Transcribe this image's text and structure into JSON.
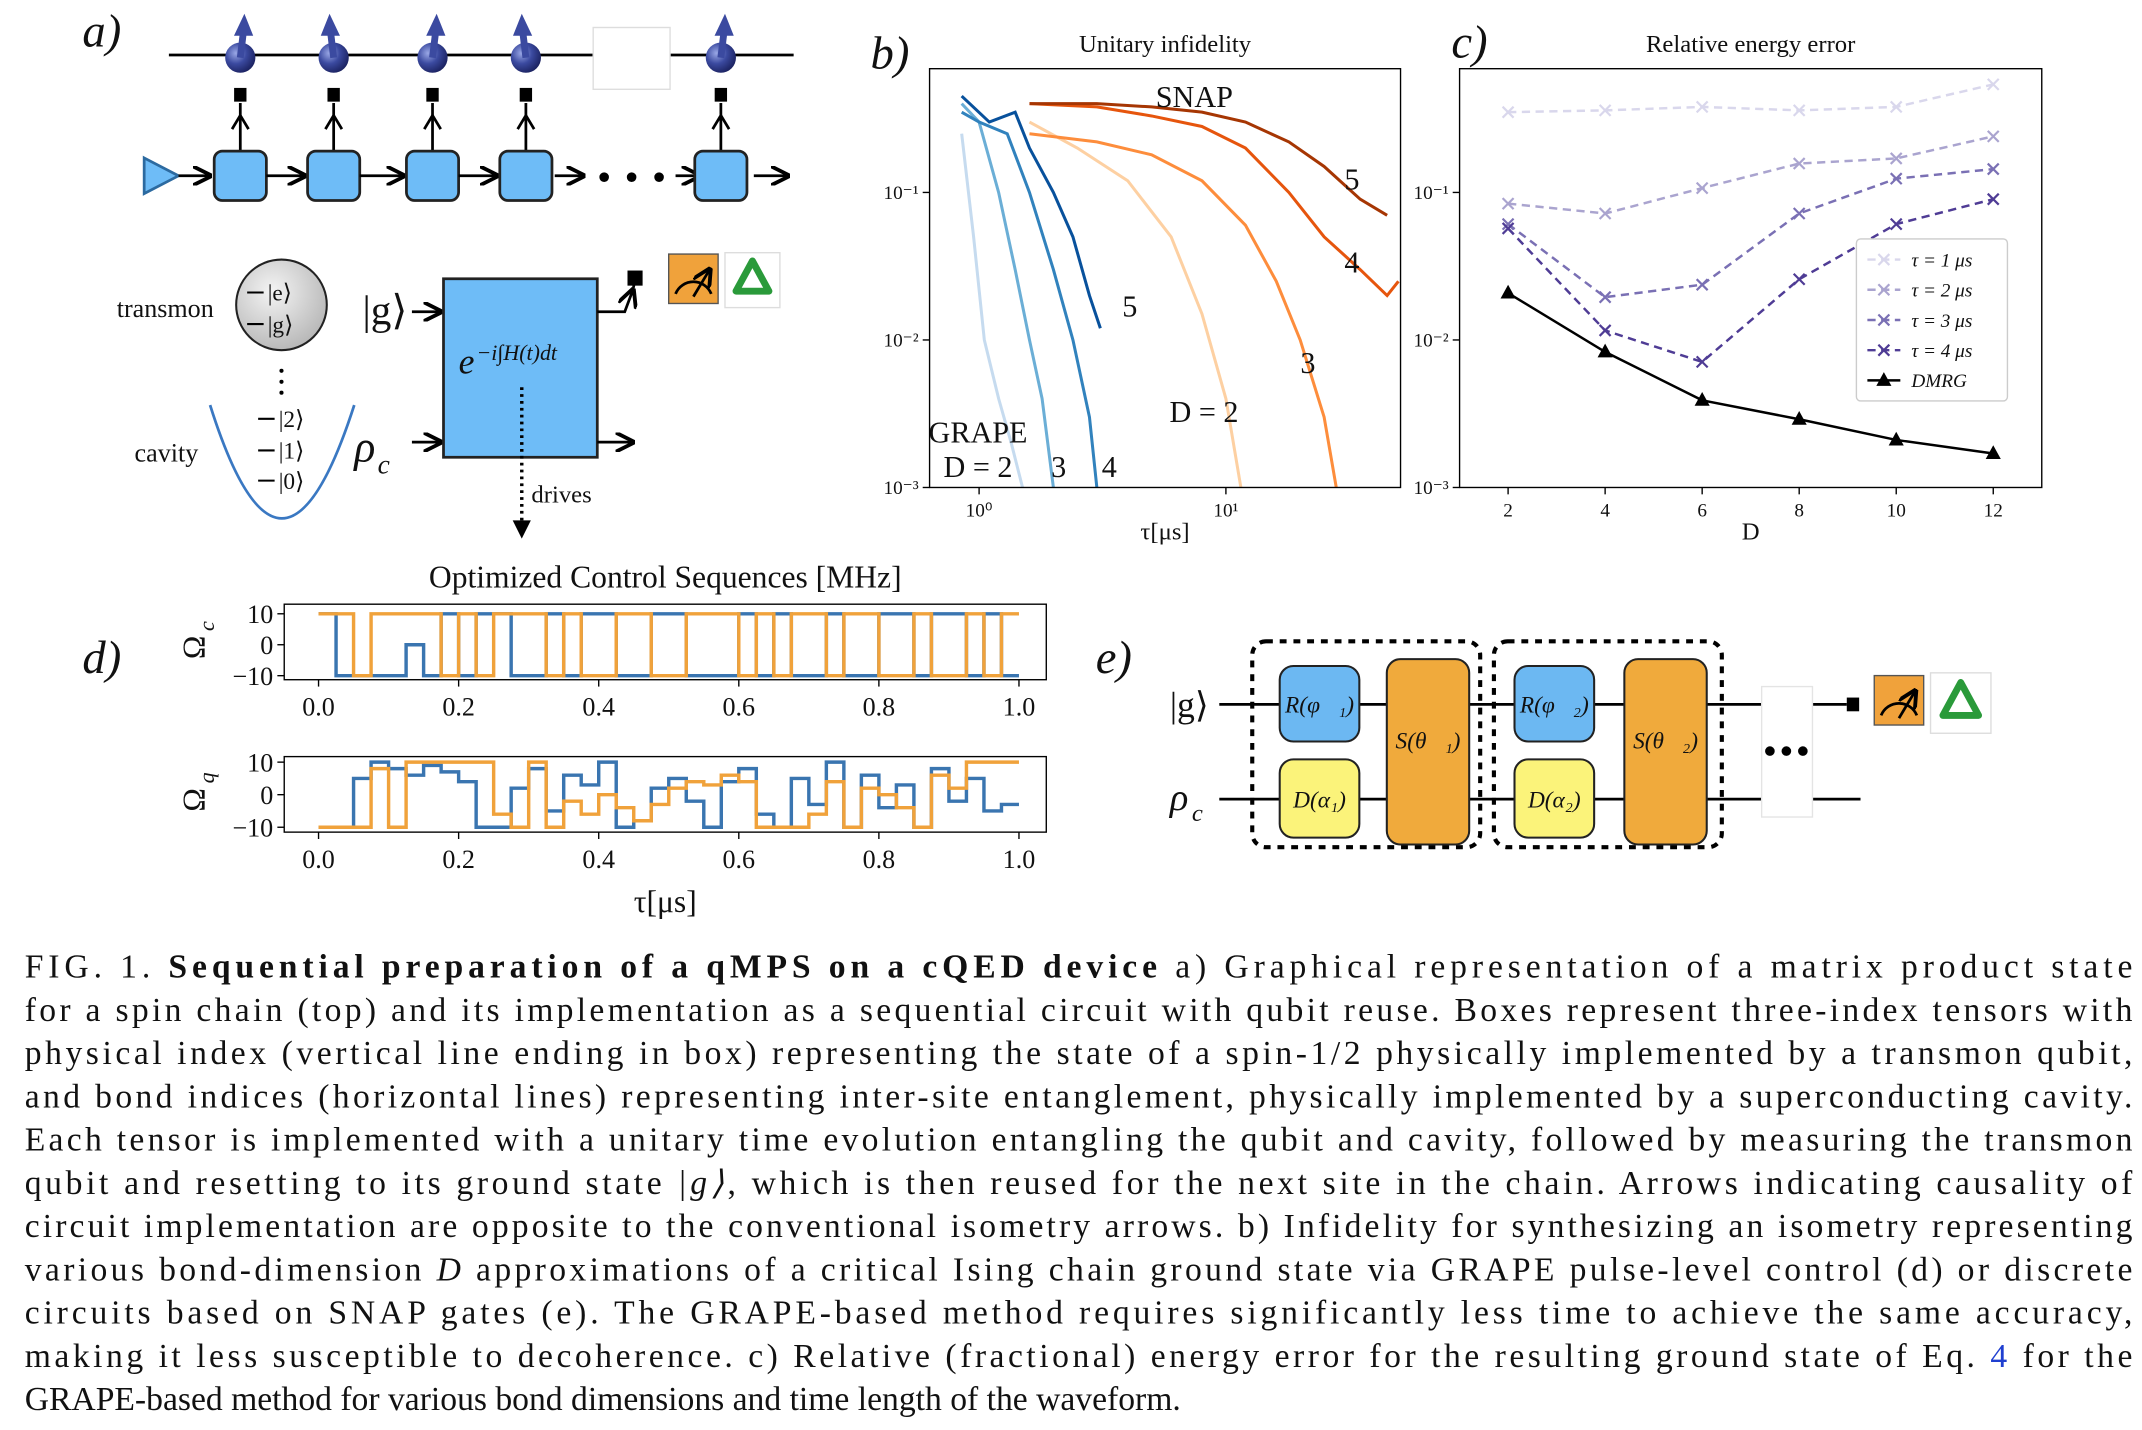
{
  "panel_labels": [
    "a)",
    "b)",
    "c)",
    "d)",
    "e)"
  ],
  "diagram_a": {
    "transmon": "transmon",
    "cavity": "cavity",
    "level_e": "|e⟩",
    "level_g": "|g⟩",
    "levels": [
      "|2⟩",
      "|1⟩",
      "|0⟩"
    ],
    "input_qubit": "|g⟩",
    "rho": "ρ",
    "rho_sub": "c",
    "unitary": "e",
    "unitary_exp": "−i∫H(t)dt",
    "drives": "drives"
  },
  "diagram_e": {
    "input_qubit": "|g⟩",
    "rho": "ρ",
    "rho_sub": "c",
    "gates": [
      "R(φ⃗₁)",
      "D(α₁)",
      "S(θ⃗₁)",
      "R(φ⃗₂)",
      "D(α₂)",
      "S(θ⃗₂)"
    ]
  },
  "chart_data": [
    {
      "type": "line",
      "title": "Unitary infidelity",
      "xlabel": "τ[μs]",
      "xscale": "log",
      "yscale": "log",
      "xlim": [
        0.63,
        51
      ],
      "ylim": [
        0.001,
        0.69
      ],
      "xticks": [
        {
          "value": 1,
          "label": "10⁰"
        },
        {
          "value": 10,
          "label": "10¹"
        }
      ],
      "yticks": [
        {
          "value": 0.001,
          "label": "10⁻³"
        },
        {
          "value": 0.01,
          "label": "10⁻²"
        },
        {
          "value": 0.1,
          "label": "10⁻¹"
        }
      ],
      "series": [
        {
          "color": "#c6dbef",
          "x": [
            0.85,
            0.95,
            1.05,
            1.2,
            1.35,
            1.5
          ],
          "values": [
            0.25,
            0.05,
            0.01,
            0.004,
            0.002,
            0.001
          ]
        },
        {
          "color": "#6baed6",
          "x": [
            0.85,
            1.0,
            1.2,
            1.4,
            1.6,
            1.8,
            2.0
          ],
          "values": [
            0.4,
            0.3,
            0.1,
            0.03,
            0.01,
            0.004,
            0.001
          ]
        },
        {
          "color": "#3182bd",
          "x": [
            0.85,
            1.0,
            1.3,
            1.6,
            2.0,
            2.4,
            2.8,
            3.0
          ],
          "values": [
            0.35,
            0.3,
            0.25,
            0.1,
            0.03,
            0.01,
            0.003,
            0.001
          ]
        },
        {
          "color": "#08519c",
          "x": [
            0.85,
            1.1,
            1.4,
            1.6,
            2.0,
            2.4,
            2.8,
            3.1
          ],
          "values": [
            0.45,
            0.3,
            0.35,
            0.2,
            0.1,
            0.05,
            0.02,
            0.012
          ]
        },
        {
          "color": "#fdd0a2",
          "x": [
            1.6,
            2.5,
            4,
            6,
            8,
            10,
            11.5
          ],
          "values": [
            0.3,
            0.2,
            0.12,
            0.05,
            0.015,
            0.004,
            0.001
          ]
        },
        {
          "color": "#fd8d3c",
          "x": [
            1.6,
            3,
            5,
            8,
            12,
            16,
            20,
            25,
            28
          ],
          "values": [
            0.25,
            0.22,
            0.18,
            0.12,
            0.06,
            0.025,
            0.01,
            0.003,
            0.001
          ]
        },
        {
          "color": "#e6550d",
          "x": [
            1.6,
            3,
            5,
            8,
            12,
            18,
            25,
            35,
            45,
            50
          ],
          "values": [
            0.4,
            0.38,
            0.33,
            0.28,
            0.2,
            0.1,
            0.05,
            0.03,
            0.02,
            0.025
          ]
        },
        {
          "color": "#a63603",
          "x": [
            1.6,
            3,
            5,
            8,
            12,
            18,
            25,
            35,
            45
          ],
          "values": [
            0.4,
            0.4,
            0.38,
            0.35,
            0.3,
            0.22,
            0.15,
            0.09,
            0.07
          ]
        }
      ],
      "annotations": [
        {
          "text": "SNAP",
          "x": 7.45,
          "y": 0.45,
          "color": "#b5332a"
        },
        {
          "text": "5",
          "x": 32.4,
          "y": 0.124,
          "color": "#b5332a"
        },
        {
          "text": "4",
          "x": 32.4,
          "y": 0.034,
          "color": "#b5332a"
        },
        {
          "text": "3",
          "x": 21.5,
          "y": 0.0071,
          "color": "#b5332a"
        },
        {
          "text": "D = 2",
          "x": 8.15,
          "y": 0.0033,
          "color": "#b5332a"
        },
        {
          "text": "5",
          "x": 4.08,
          "y": 0.0171,
          "color": "#2f6fb0"
        },
        {
          "text": "GRAPE",
          "x": 0.99,
          "y": 0.0024,
          "color": "#2f6fb0"
        },
        {
          "text": "D = 2",
          "x": 0.99,
          "y": 0.0014,
          "color": "#2f6fb0"
        },
        {
          "text": "3",
          "x": 2.1,
          "y": 0.0014,
          "color": "#2f6fb0"
        },
        {
          "text": "4",
          "x": 3.37,
          "y": 0.0014,
          "color": "#2f6fb0"
        }
      ]
    },
    {
      "type": "line",
      "title": "Relative energy error",
      "xlabel": "D",
      "yscale": "log",
      "xlim": [
        1,
        13
      ],
      "ylim": [
        0.001,
        0.69
      ],
      "xticks": [
        2,
        4,
        6,
        8,
        10,
        12
      ],
      "yticks": [
        {
          "value": 0.001,
          "label": "10⁻³"
        },
        {
          "value": 0.01,
          "label": "10⁻²"
        },
        {
          "value": 0.1,
          "label": "10⁻¹"
        }
      ],
      "legend": "center right",
      "x": [
        2,
        4,
        6,
        8,
        10,
        12
      ],
      "series": [
        {
          "name": "τ = 1 μs",
          "color": "#d9d7ec",
          "linestyle": "dashed",
          "marker": "x",
          "values": [
            0.35,
            0.36,
            0.38,
            0.36,
            0.38,
            0.54
          ]
        },
        {
          "name": "τ = 2 μs",
          "color": "#aaa4cf",
          "linestyle": "dashed",
          "marker": "x",
          "values": [
            0.084,
            0.072,
            0.107,
            0.157,
            0.17,
            0.24
          ]
        },
        {
          "name": "τ = 3 μs",
          "color": "#7a70b4",
          "linestyle": "dashed",
          "marker": "x",
          "values": [
            0.061,
            0.0195,
            0.0237,
            0.072,
            0.124,
            0.144
          ]
        },
        {
          "name": "τ = 4 μs",
          "color": "#4f3c95",
          "linestyle": "dashed",
          "marker": "x",
          "values": [
            0.057,
            0.0116,
            0.0071,
            0.0258,
            0.061,
            0.09
          ]
        },
        {
          "name": "DMRG",
          "color": "#000000",
          "linestyle": "solid",
          "marker": "^",
          "values": [
            0.0208,
            0.0083,
            0.0039,
            0.0029,
            0.0021,
            0.0017
          ]
        }
      ]
    },
    {
      "type": "step",
      "title": "Optimized Control Sequences [MHz]",
      "ylabel": "Ω",
      "ylabel_sub": "c",
      "xlim": [
        -0.049,
        1.039
      ],
      "ylim": [
        -11.3,
        13.1
      ],
      "xticks": [
        {
          "value": 0,
          "label": "0.0"
        },
        0.2,
        0.4,
        0.6,
        0.8,
        {
          "value": 1,
          "label": "1.0"
        }
      ],
      "yticks": [
        {
          "value": -10,
          "label": "−10"
        },
        0,
        10
      ],
      "x": [
        0,
        0.025,
        0.05,
        0.075,
        0.1,
        0.125,
        0.15,
        0.175,
        0.2,
        0.225,
        0.25,
        0.275,
        0.3,
        0.325,
        0.35,
        0.375,
        0.4,
        0.425,
        0.45,
        0.475,
        0.5,
        0.525,
        0.55,
        0.575,
        0.6,
        0.625,
        0.65,
        0.675,
        0.7,
        0.725,
        0.75,
        0.775,
        0.8,
        0.825,
        0.85,
        0.875,
        0.9,
        0.925,
        0.95,
        0.975
      ],
      "series": [
        {
          "color": "#3a75b0",
          "values": [
            10,
            -10,
            -10,
            -10,
            -10,
            0,
            -10,
            10,
            -10,
            10,
            10,
            -10,
            -10,
            10,
            -10,
            10,
            10,
            -10,
            -10,
            10,
            10,
            -10,
            -10,
            -10,
            10,
            -10,
            10,
            -10,
            -10,
            10,
            -10,
            -10,
            10,
            10,
            -10,
            10,
            10,
            -10,
            10,
            -10
          ]
        },
        {
          "color": "#f0a23b",
          "values": [
            10,
            10,
            -10,
            10,
            10,
            10,
            10,
            -10,
            10,
            -10,
            10,
            10,
            10,
            -10,
            10,
            -10,
            -10,
            10,
            10,
            -10,
            -10,
            10,
            10,
            10,
            -10,
            10,
            -10,
            10,
            10,
            -10,
            10,
            10,
            -10,
            -10,
            10,
            -10,
            -10,
            10,
            -10,
            10
          ]
        }
      ]
    },
    {
      "type": "step",
      "xlabel": "τ[μs]",
      "ylabel": "Ω",
      "ylabel_sub": "q",
      "xlim": [
        -0.049,
        1.039
      ],
      "ylim": [
        -11.5,
        11.7
      ],
      "xticks": [
        {
          "value": 0,
          "label": "0.0"
        },
        0.2,
        0.4,
        0.6,
        0.8,
        {
          "value": 1,
          "label": "1.0"
        }
      ],
      "yticks": [
        {
          "value": -10,
          "label": "−10"
        },
        0,
        10
      ],
      "x": [
        0,
        0.025,
        0.05,
        0.075,
        0.1,
        0.125,
        0.15,
        0.175,
        0.2,
        0.225,
        0.25,
        0.275,
        0.3,
        0.325,
        0.35,
        0.375,
        0.4,
        0.425,
        0.45,
        0.475,
        0.5,
        0.525,
        0.55,
        0.575,
        0.6,
        0.625,
        0.65,
        0.675,
        0.7,
        0.725,
        0.75,
        0.775,
        0.8,
        0.825,
        0.85,
        0.875,
        0.9,
        0.925,
        0.95,
        0.975
      ],
      "series": [
        {
          "color": "#3a75b0",
          "values": [
            -10,
            -10,
            5,
            10,
            8,
            6,
            9,
            7,
            4,
            -10,
            -10,
            2,
            8,
            -5,
            6,
            3,
            10,
            -10,
            -8,
            2,
            5,
            -2,
            -10,
            4,
            8,
            -6,
            -10,
            5,
            -3,
            10,
            -10,
            6,
            -4,
            3,
            -10,
            8,
            -2,
            5,
            -5,
            -3
          ]
        },
        {
          "color": "#f0a23b",
          "values": [
            -10,
            -10,
            -10,
            8,
            -10,
            10,
            10,
            10,
            10,
            10,
            -6,
            -10,
            10,
            -10,
            -2,
            -6,
            0,
            -4,
            -8,
            -3,
            2,
            4,
            3,
            6,
            4,
            -10,
            -10,
            -10,
            -6,
            4,
            -10,
            2,
            0,
            -4,
            -10,
            6,
            2,
            10,
            10,
            10
          ]
        }
      ]
    }
  ],
  "caption": {
    "lines": [
      [
        {
          "text": "FIG. 1. "
        },
        {
          "text": "Sequential preparation of a qMPS on a cQED device",
          "bold": true
        },
        {
          "text": " a) Graphical representation of a matrix product state"
        }
      ],
      [
        {
          "text": "for a spin chain (top) and its implementation as a sequential circuit with qubit reuse. Boxes represent three-index tensors with"
        }
      ],
      [
        {
          "text": "physical index (vertical line ending in box) representing the state of a spin-1/2 physically implemented by a transmon qubit,"
        }
      ],
      [
        {
          "text": "and bond indices (horizontal lines) representing inter-site entanglement, physically implemented by a superconducting cavity."
        }
      ],
      [
        {
          "text": "Each tensor is implemented with a unitary time evolution entangling the qubit and cavity, followed by measuring the transmon"
        }
      ],
      [
        {
          "text": "qubit and resetting to its ground state "
        },
        {
          "text": "|g⟩",
          "italic": true
        },
        {
          "text": ", which is then reused for the next site in the chain. Arrows indicating causality of"
        }
      ],
      [
        {
          "text": "circuit implementation are opposite to the conventional isometry arrows. b) Infidelity for synthesizing an isometry representing"
        }
      ],
      [
        {
          "text": "various bond-dimension "
        },
        {
          "text": "D",
          "italic": true
        },
        {
          "text": " approximations of a critical Ising chain ground state via GRAPE pulse-level control (d) or discrete"
        }
      ],
      [
        {
          "text": "circuits based on SNAP gates (e). The GRAPE-based method requires significantly less time to achieve the same accuracy,"
        }
      ],
      [
        {
          "text": "making it less susceptible to decoherence. c) Relative (fractional) energy error for the resulting ground state of Eq. "
        },
        {
          "text": "4",
          "link": true
        },
        {
          "text": " for the"
        }
      ],
      [
        {
          "text": "GRAPE-based method for various bond dimensions and time length of the waveform."
        }
      ]
    ]
  }
}
